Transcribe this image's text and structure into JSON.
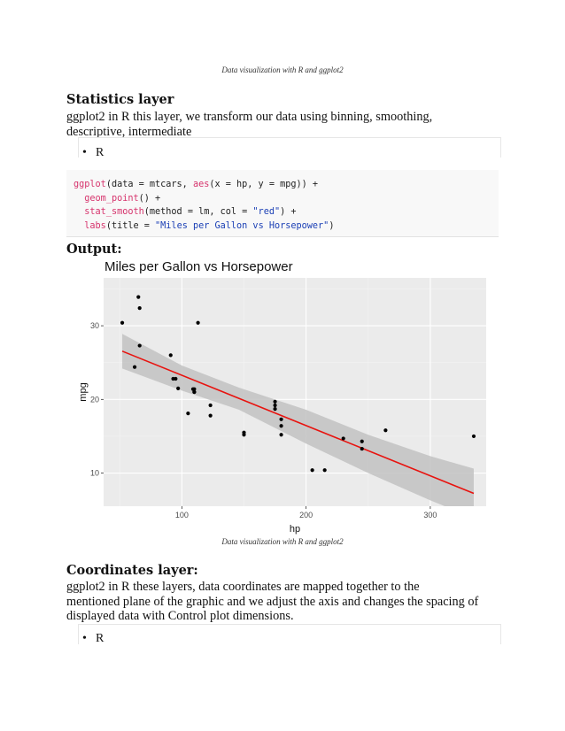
{
  "captions": {
    "top": "Data visualization with R and ggplot2",
    "figure": "Data visualization with R and ggplot2"
  },
  "stats_section": {
    "heading": "Statistics layer",
    "text_line1": "ggplot2 in R this layer, we transform our data using binning, smoothing,",
    "text_line2": "descriptive, intermediate",
    "bullet": "R"
  },
  "code": {
    "line1_a": "ggplot",
    "line1_b": "(data = mtcars, ",
    "line1_c": "aes",
    "line1_d": "(x = hp, y = mpg)) +",
    "line2_a": "geom_point",
    "line2_b": "() +",
    "line3_a": "stat_smooth",
    "line3_b": "(method = lm, col = ",
    "line3_c": "\"red\"",
    "line3_d": ") +",
    "line4_a": "labs",
    "line4_b": "(title = ",
    "line4_c": "\"Miles per Gallon vs Horsepower\"",
    "line4_d": ")"
  },
  "output_heading": "Output:",
  "coords_section": {
    "heading": "Coordinates layer:",
    "text_line1": "ggplot2 in R these layers, data coordinates are mapped together to the",
    "text_line2": "mentioned plane of the graphic and we adjust the axis and changes the spacing of",
    "text_line3": "displayed data with Control plot dimensions.",
    "bullet": "R"
  },
  "chart_data": {
    "type": "scatter",
    "title": "Miles per Gallon vs Horsepower",
    "xlabel": "hp",
    "ylabel": "mpg",
    "xlim": [
      37,
      345
    ],
    "ylim": [
      5.5,
      36.5
    ],
    "x_ticks": [
      100,
      200,
      300
    ],
    "y_ticks": [
      10,
      20,
      30
    ],
    "grid": true,
    "points": [
      {
        "x": 52,
        "y": 30.4
      },
      {
        "x": 62,
        "y": 24.4
      },
      {
        "x": 65,
        "y": 33.9
      },
      {
        "x": 66,
        "y": 32.4
      },
      {
        "x": 66,
        "y": 27.3
      },
      {
        "x": 91,
        "y": 26.0
      },
      {
        "x": 93,
        "y": 22.8
      },
      {
        "x": 95,
        "y": 22.8
      },
      {
        "x": 97,
        "y": 21.5
      },
      {
        "x": 105,
        "y": 18.1
      },
      {
        "x": 109,
        "y": 21.4
      },
      {
        "x": 110,
        "y": 21.0
      },
      {
        "x": 110,
        "y": 21.0
      },
      {
        "x": 110,
        "y": 21.4
      },
      {
        "x": 113,
        "y": 30.4
      },
      {
        "x": 123,
        "y": 17.8
      },
      {
        "x": 123,
        "y": 19.2
      },
      {
        "x": 150,
        "y": 15.2
      },
      {
        "x": 150,
        "y": 15.5
      },
      {
        "x": 175,
        "y": 19.2
      },
      {
        "x": 175,
        "y": 18.7
      },
      {
        "x": 175,
        "y": 19.7
      },
      {
        "x": 180,
        "y": 16.4
      },
      {
        "x": 180,
        "y": 17.3
      },
      {
        "x": 180,
        "y": 15.2
      },
      {
        "x": 205,
        "y": 10.4
      },
      {
        "x": 215,
        "y": 10.4
      },
      {
        "x": 230,
        "y": 14.7
      },
      {
        "x": 245,
        "y": 14.3
      },
      {
        "x": 245,
        "y": 13.3
      },
      {
        "x": 264,
        "y": 15.8
      },
      {
        "x": 335,
        "y": 15.0
      }
    ],
    "fit_line": {
      "color": "#e8130f",
      "x": [
        52,
        335
      ],
      "y": [
        26.55,
        7.24
      ]
    },
    "confidence_band": {
      "x": [
        52,
        100,
        146,
        200,
        250,
        300,
        335
      ],
      "lower": [
        24.2,
        21.2,
        18.6,
        14.0,
        10.0,
        6.3,
        3.9
      ],
      "upper": [
        28.9,
        24.6,
        21.6,
        18.6,
        15.2,
        12.3,
        10.6
      ]
    },
    "colors": {
      "panel": "#ebebeb",
      "grid_major": "#ffffff",
      "grid_minor": "#f3f3f3",
      "band": "#c2c2c2",
      "point": "#000000"
    }
  }
}
